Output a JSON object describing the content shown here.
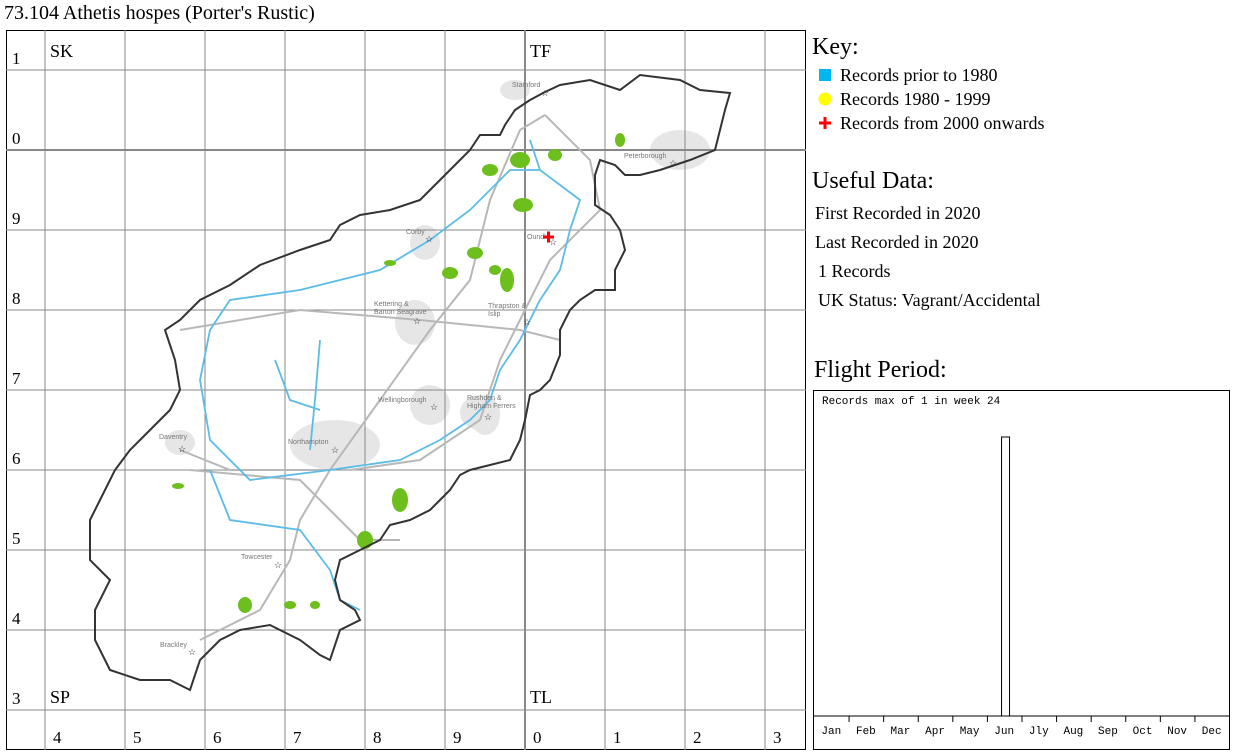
{
  "title": "73.104 Athetis hospes (Porter's Rustic)",
  "map": {
    "squares": {
      "top_left": "SK",
      "top_right": "TF",
      "bottom_left": "SP",
      "bottom_right": "TL"
    },
    "row_labels": [
      "1",
      "0",
      "9",
      "8",
      "7",
      "6",
      "5",
      "4",
      "3"
    ],
    "col_labels": [
      "4",
      "5",
      "6",
      "7",
      "8",
      "9",
      "0",
      "1",
      "2",
      "3"
    ],
    "towns": [
      {
        "name": "Stamford"
      },
      {
        "name": "Peterborough"
      },
      {
        "name": "Corby"
      },
      {
        "name": "Oundle"
      },
      {
        "name": "Kettering & Barton Seagrave"
      },
      {
        "name": "Thrapston & Islip"
      },
      {
        "name": "Wellingborough"
      },
      {
        "name": "Rushden & Higham Ferrers"
      },
      {
        "name": "Daventry"
      },
      {
        "name": "Northampton"
      },
      {
        "name": "Towcester"
      },
      {
        "name": "Brackley"
      }
    ],
    "records": [
      {
        "period": "2000 onwards",
        "location": "Oundle"
      }
    ],
    "colors": {
      "border": "#333333",
      "river": "#5bbce8",
      "road": "#b8b8b8",
      "wood": "#6cbf1c",
      "urban": "#e6e6e6",
      "grid": "#888888"
    }
  },
  "key": {
    "heading": "Key:",
    "items": [
      {
        "label": "Records prior to 1980",
        "symbol": "square",
        "color": "#00b7ef"
      },
      {
        "label": "Records 1980 - 1999",
        "symbol": "circle",
        "color": "#ffff00"
      },
      {
        "label": "Records from 2000 onwards",
        "symbol": "cross",
        "color": "#ff0000"
      }
    ]
  },
  "useful_data": {
    "heading": "Useful Data:",
    "first": "First Recorded in 2020",
    "last": "Last Recorded in 2020",
    "count": "1 Records",
    "status": "UK Status: Vagrant/Accidental"
  },
  "chart_data": {
    "type": "bar",
    "title": "Flight Period:",
    "annotation": "Records max of 1 in week 24",
    "categories": [
      "Jan",
      "Feb",
      "Mar",
      "Apr",
      "May",
      "Jun",
      "Jly",
      "Aug",
      "Sep",
      "Oct",
      "Nov",
      "Dec"
    ],
    "weeks": 52,
    "values": [
      {
        "week": 24,
        "count": 1
      }
    ],
    "ylim": [
      0,
      1
    ]
  }
}
